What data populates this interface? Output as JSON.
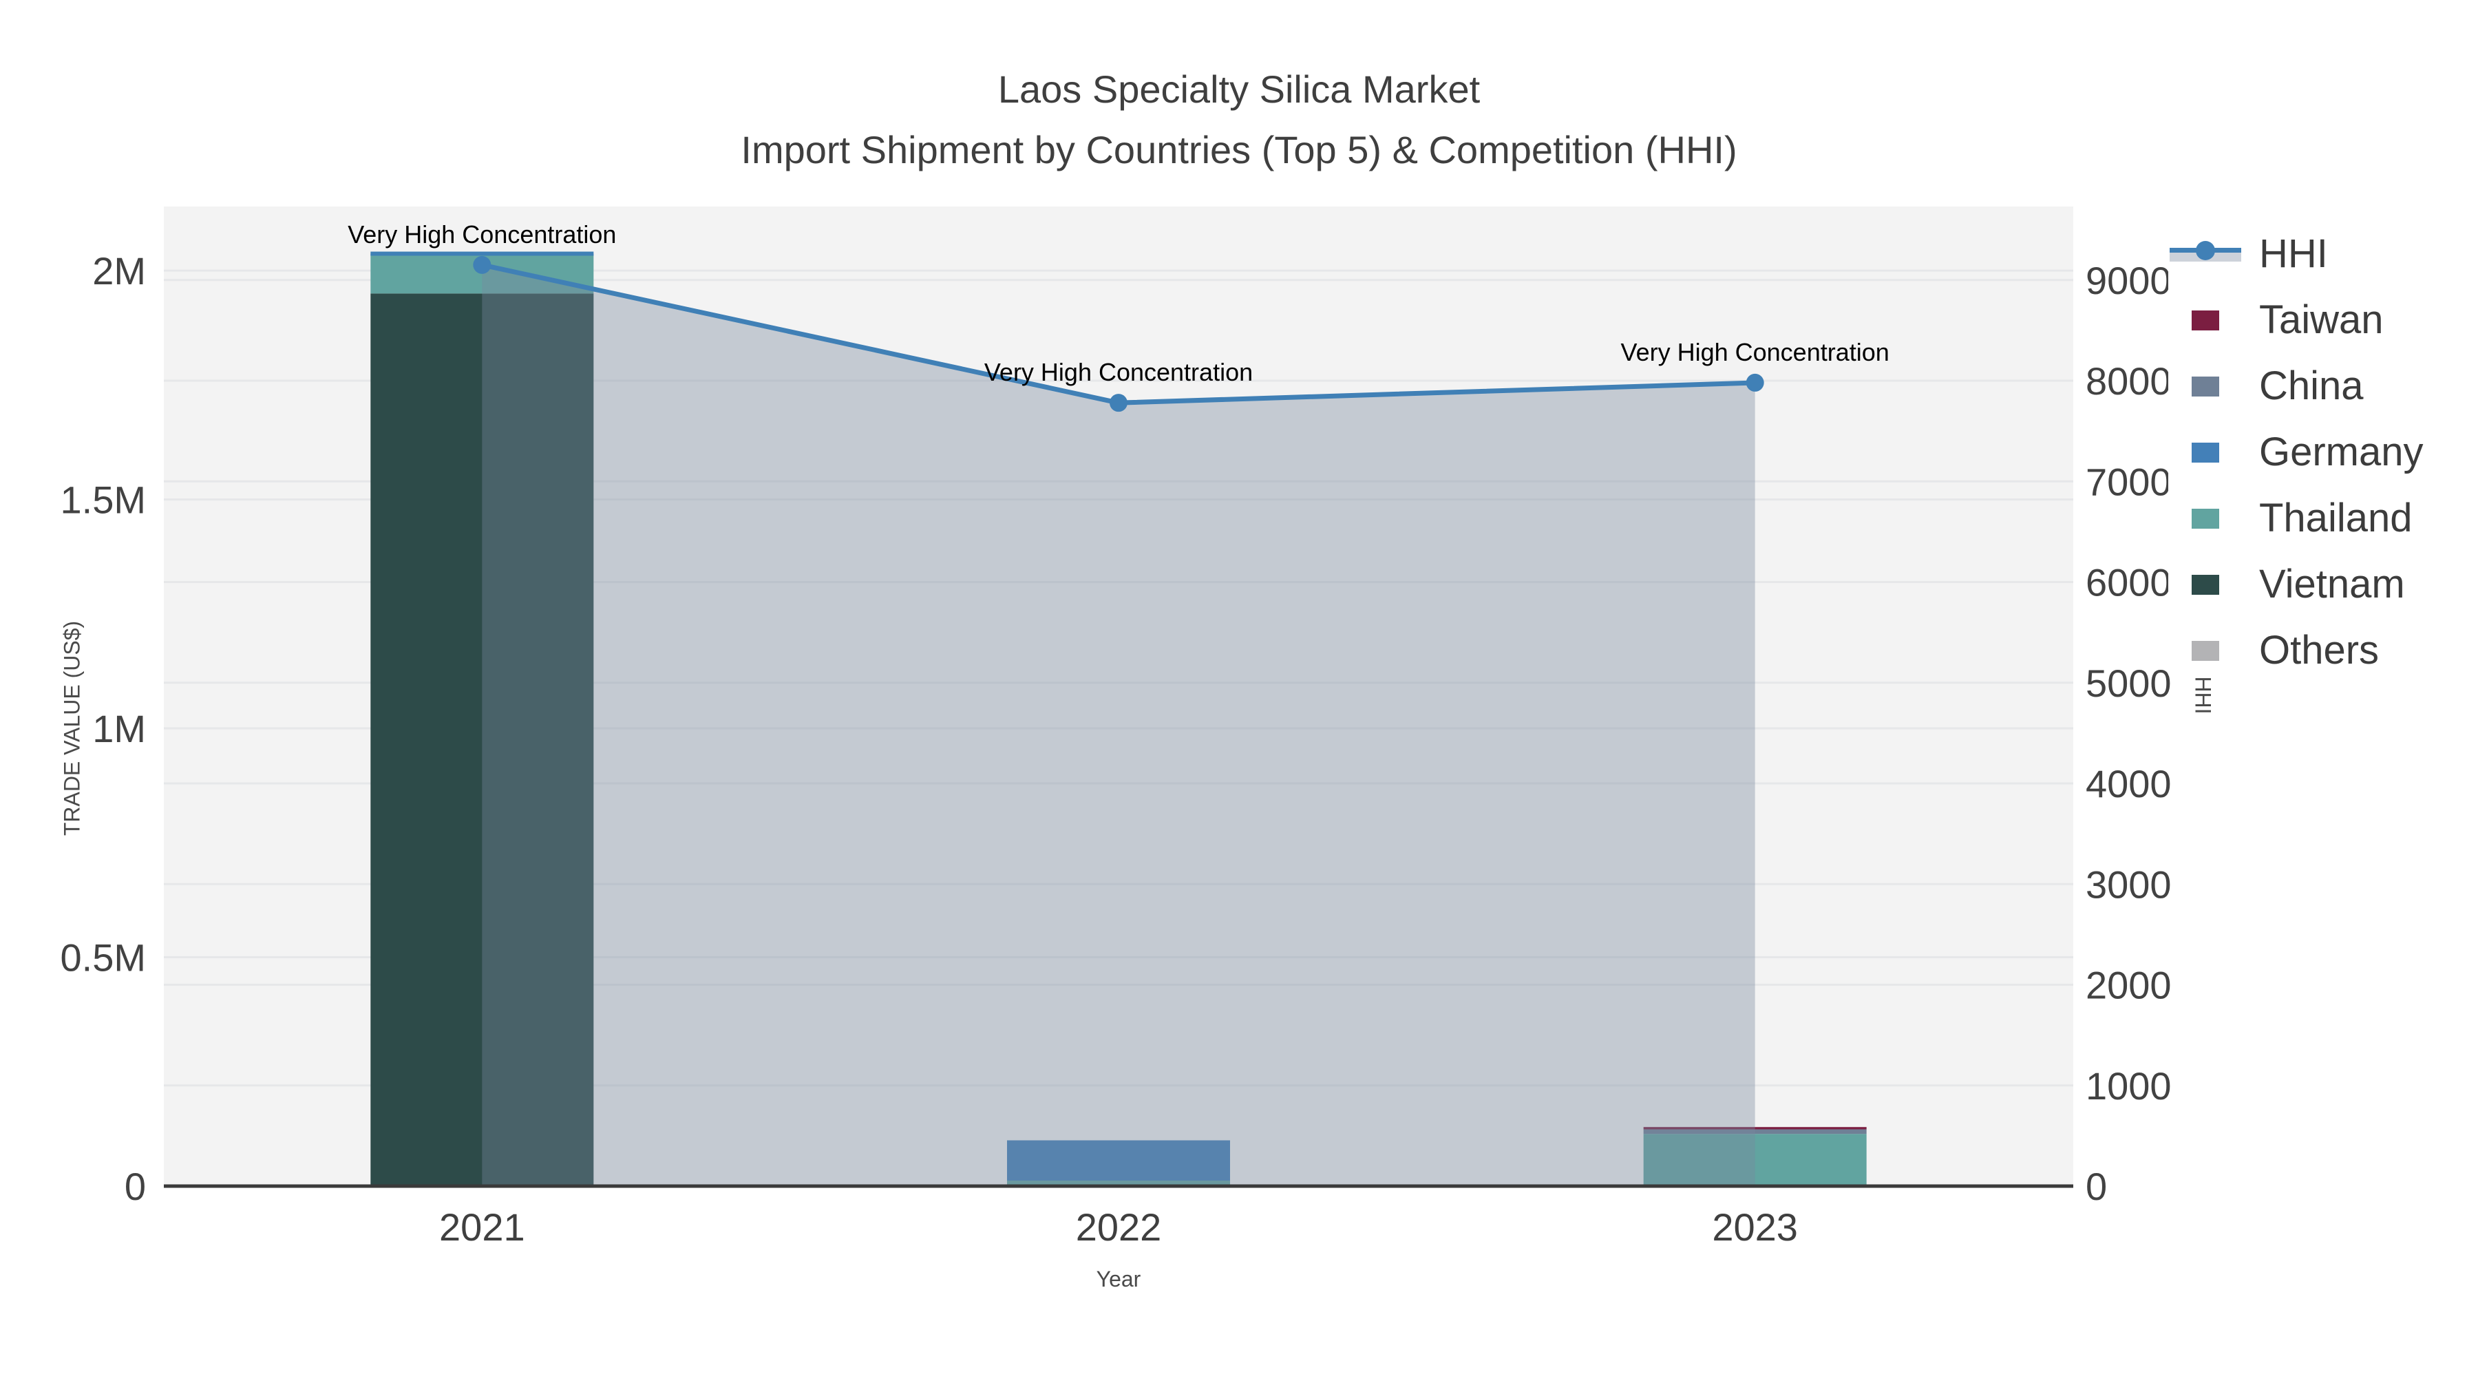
{
  "title": {
    "line1": "Laos Specialty Silica Market",
    "line2": "Import Shipment by Countries (Top 5) & Competition (HHI)"
  },
  "chart_data": {
    "type": "combo-stacked-bar-line",
    "categories": [
      "2021",
      "2022",
      "2023"
    ],
    "bar_series": [
      {
        "name": "Taiwan",
        "color": "#7b1e41",
        "values": [
          0,
          0,
          5000
        ]
      },
      {
        "name": "China",
        "color": "#6f8096",
        "values": [
          0,
          0,
          10000
        ]
      },
      {
        "name": "Germany",
        "color": "#4380b8",
        "values": [
          0,
          88000,
          0
        ]
      },
      {
        "name": "Thailand",
        "color": "#61a4a0",
        "values": [
          87000,
          12000,
          114000
        ]
      },
      {
        "name": "Vietnam",
        "color": "#2d4b49",
        "values": [
          1950000,
          0,
          0
        ]
      },
      {
        "name": "Others",
        "color": "#b3b3b5",
        "values": [
          0,
          0,
          0
        ]
      }
    ],
    "stack_order_bottom_to_top": [
      [
        "Vietnam",
        "Thailand"
      ],
      [
        "Thailand",
        "Germany"
      ],
      [
        "Thailand",
        "China",
        "Taiwan"
      ]
    ],
    "line_series": {
      "name": "HHI",
      "values": [
        9150,
        7780,
        7980
      ],
      "color": "#4080b6",
      "area_fill": "rgba(121,136,158,0.38)",
      "marker_radius": 13,
      "line_width": 7,
      "bar_top_cap_category_index": 0
    },
    "annotations": [
      {
        "text": "Very High Concentration",
        "category": "2021"
      },
      {
        "text": "Very High Concentration",
        "category": "2022"
      },
      {
        "text": "Very High Concentration",
        "category": "2023"
      }
    ],
    "left_axis": {
      "title": "TRADE VALUE (US$)",
      "tick_labels": [
        "0",
        "0.5M",
        "1M",
        "1.5M",
        "2M"
      ],
      "tick_values": [
        0,
        500000,
        1000000,
        1500000,
        2000000
      ],
      "range": [
        0,
        2140000
      ]
    },
    "right_axis": {
      "title": "HHI",
      "tick_labels": [
        "0",
        "1000",
        "2000",
        "3000",
        "4000",
        "5000",
        "6000",
        "7000",
        "8000",
        "9000"
      ],
      "tick_values": [
        0,
        1000,
        2000,
        3000,
        4000,
        5000,
        6000,
        7000,
        8000,
        9000
      ],
      "range": [
        0,
        9730
      ]
    },
    "x_axis": {
      "title": "Year"
    },
    "grid": true,
    "legend_position": "right",
    "plot_background": "#f3f3f3",
    "gridline_color": "#e6e7e9",
    "axis_line_color": "#3a3a3a",
    "tick_label_color": "#424242",
    "annotation_color": "#000000"
  },
  "legend": {
    "items": [
      {
        "label": "HHI",
        "type": "line",
        "swatch_color": "#4080b6"
      },
      {
        "label": "Taiwan",
        "type": "square",
        "swatch_color": "#7b1e41"
      },
      {
        "label": "China",
        "type": "square",
        "swatch_color": "#6f8096"
      },
      {
        "label": "Germany",
        "type": "square",
        "swatch_color": "#4380b8"
      },
      {
        "label": "Thailand",
        "type": "square",
        "swatch_color": "#61a4a0"
      },
      {
        "label": "Vietnam",
        "type": "square",
        "swatch_color": "#2d4b49"
      },
      {
        "label": "Others",
        "type": "square",
        "swatch_color": "#b3b3b5"
      }
    ]
  }
}
